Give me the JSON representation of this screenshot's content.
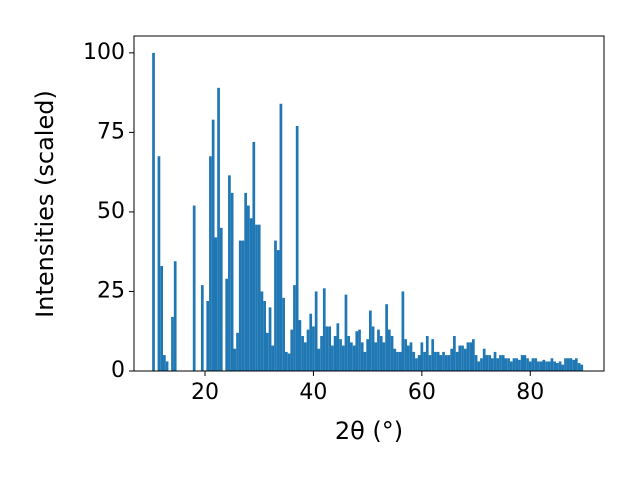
{
  "chart_data": {
    "type": "bar",
    "x_label": "2θ (°)",
    "y_label": "Intensities (scaled)",
    "color": "#1f77b4",
    "xlim": [
      6.9,
      93.6
    ],
    "xticks": [
      20,
      40,
      60,
      80
    ],
    "ylim": [
      0,
      105.3
    ],
    "yticks": [
      0,
      25,
      50,
      75,
      100
    ],
    "x": [
      10.5,
      11.5,
      12,
      12.5,
      13,
      14,
      14.5,
      18,
      19.5,
      20.5,
      21,
      21.5,
      22,
      22.5,
      23,
      24,
      24.5,
      25,
      25.5,
      26,
      26.5,
      27,
      27.5,
      28,
      28.5,
      29,
      29.5,
      30,
      30.5,
      31,
      31.5,
      32,
      32.5,
      33,
      33.5,
      34,
      34.5,
      35,
      35.5,
      36,
      36.5,
      37,
      37.5,
      38,
      38.5,
      39,
      39.5,
      40,
      40.5,
      41,
      41.5,
      42,
      42.5,
      43,
      43.5,
      44,
      44.5,
      45,
      45.5,
      46,
      46.5,
      47,
      47.5,
      48,
      48.5,
      49,
      49.5,
      50,
      50.5,
      51,
      51.5,
      52,
      52.5,
      53,
      53.5,
      54,
      54.5,
      55,
      55.5,
      56,
      56.5,
      57,
      57.5,
      58,
      58.5,
      59,
      59.5,
      60,
      60.5,
      61,
      61.5,
      62,
      62.5,
      63,
      63.5,
      64,
      64.5,
      65,
      65.5,
      66,
      66.5,
      67,
      67.5,
      68,
      68.5,
      69,
      69.5,
      70,
      70.5,
      71,
      71.5,
      72,
      72.5,
      73,
      73.5,
      74,
      74.5,
      75,
      75.5,
      76,
      76.5,
      77,
      77.5,
      78,
      78.5,
      79,
      79.5,
      80,
      80.5,
      81,
      81.5,
      82,
      82.5,
      83,
      83.5,
      84,
      84.5,
      85,
      85.5,
      86,
      86.5,
      87,
      87.5,
      88,
      88.5,
      89,
      89.5
    ],
    "values": [
      100,
      67.5,
      33,
      5,
      3,
      17,
      34.5,
      52,
      27,
      22,
      67.5,
      79,
      42,
      89,
      45,
      29,
      61.5,
      56,
      7,
      12,
      41,
      41,
      56,
      52,
      48,
      72,
      46,
      46,
      25,
      22,
      12,
      20,
      8,
      41,
      38,
      84,
      23,
      6,
      5.5,
      13,
      27,
      77,
      16,
      11,
      9,
      13,
      18,
      14,
      25,
      7,
      11,
      26,
      14,
      14,
      8,
      11,
      15,
      10,
      8,
      24,
      11,
      9,
      8,
      12.5,
      13,
      9,
      6,
      10,
      19,
      14,
      9,
      13,
      11,
      9,
      21,
      13,
      11,
      7,
      6,
      6,
      25,
      10,
      8,
      9,
      6,
      4,
      5,
      9,
      6,
      11,
      5,
      10,
      6,
      6,
      5,
      6,
      5,
      5,
      7,
      11,
      6,
      8,
      8,
      7,
      9,
      9,
      10,
      5,
      3,
      4,
      7,
      5,
      5,
      4,
      6,
      4,
      5,
      5,
      4,
      4,
      3,
      4,
      4,
      3.5,
      5,
      5,
      4,
      3,
      4,
      4,
      3,
      3,
      3.5,
      3,
      3,
      4,
      3,
      2.5,
      3,
      2,
      4,
      4,
      4,
      3.5,
      4,
      2.5,
      2
    ]
  }
}
